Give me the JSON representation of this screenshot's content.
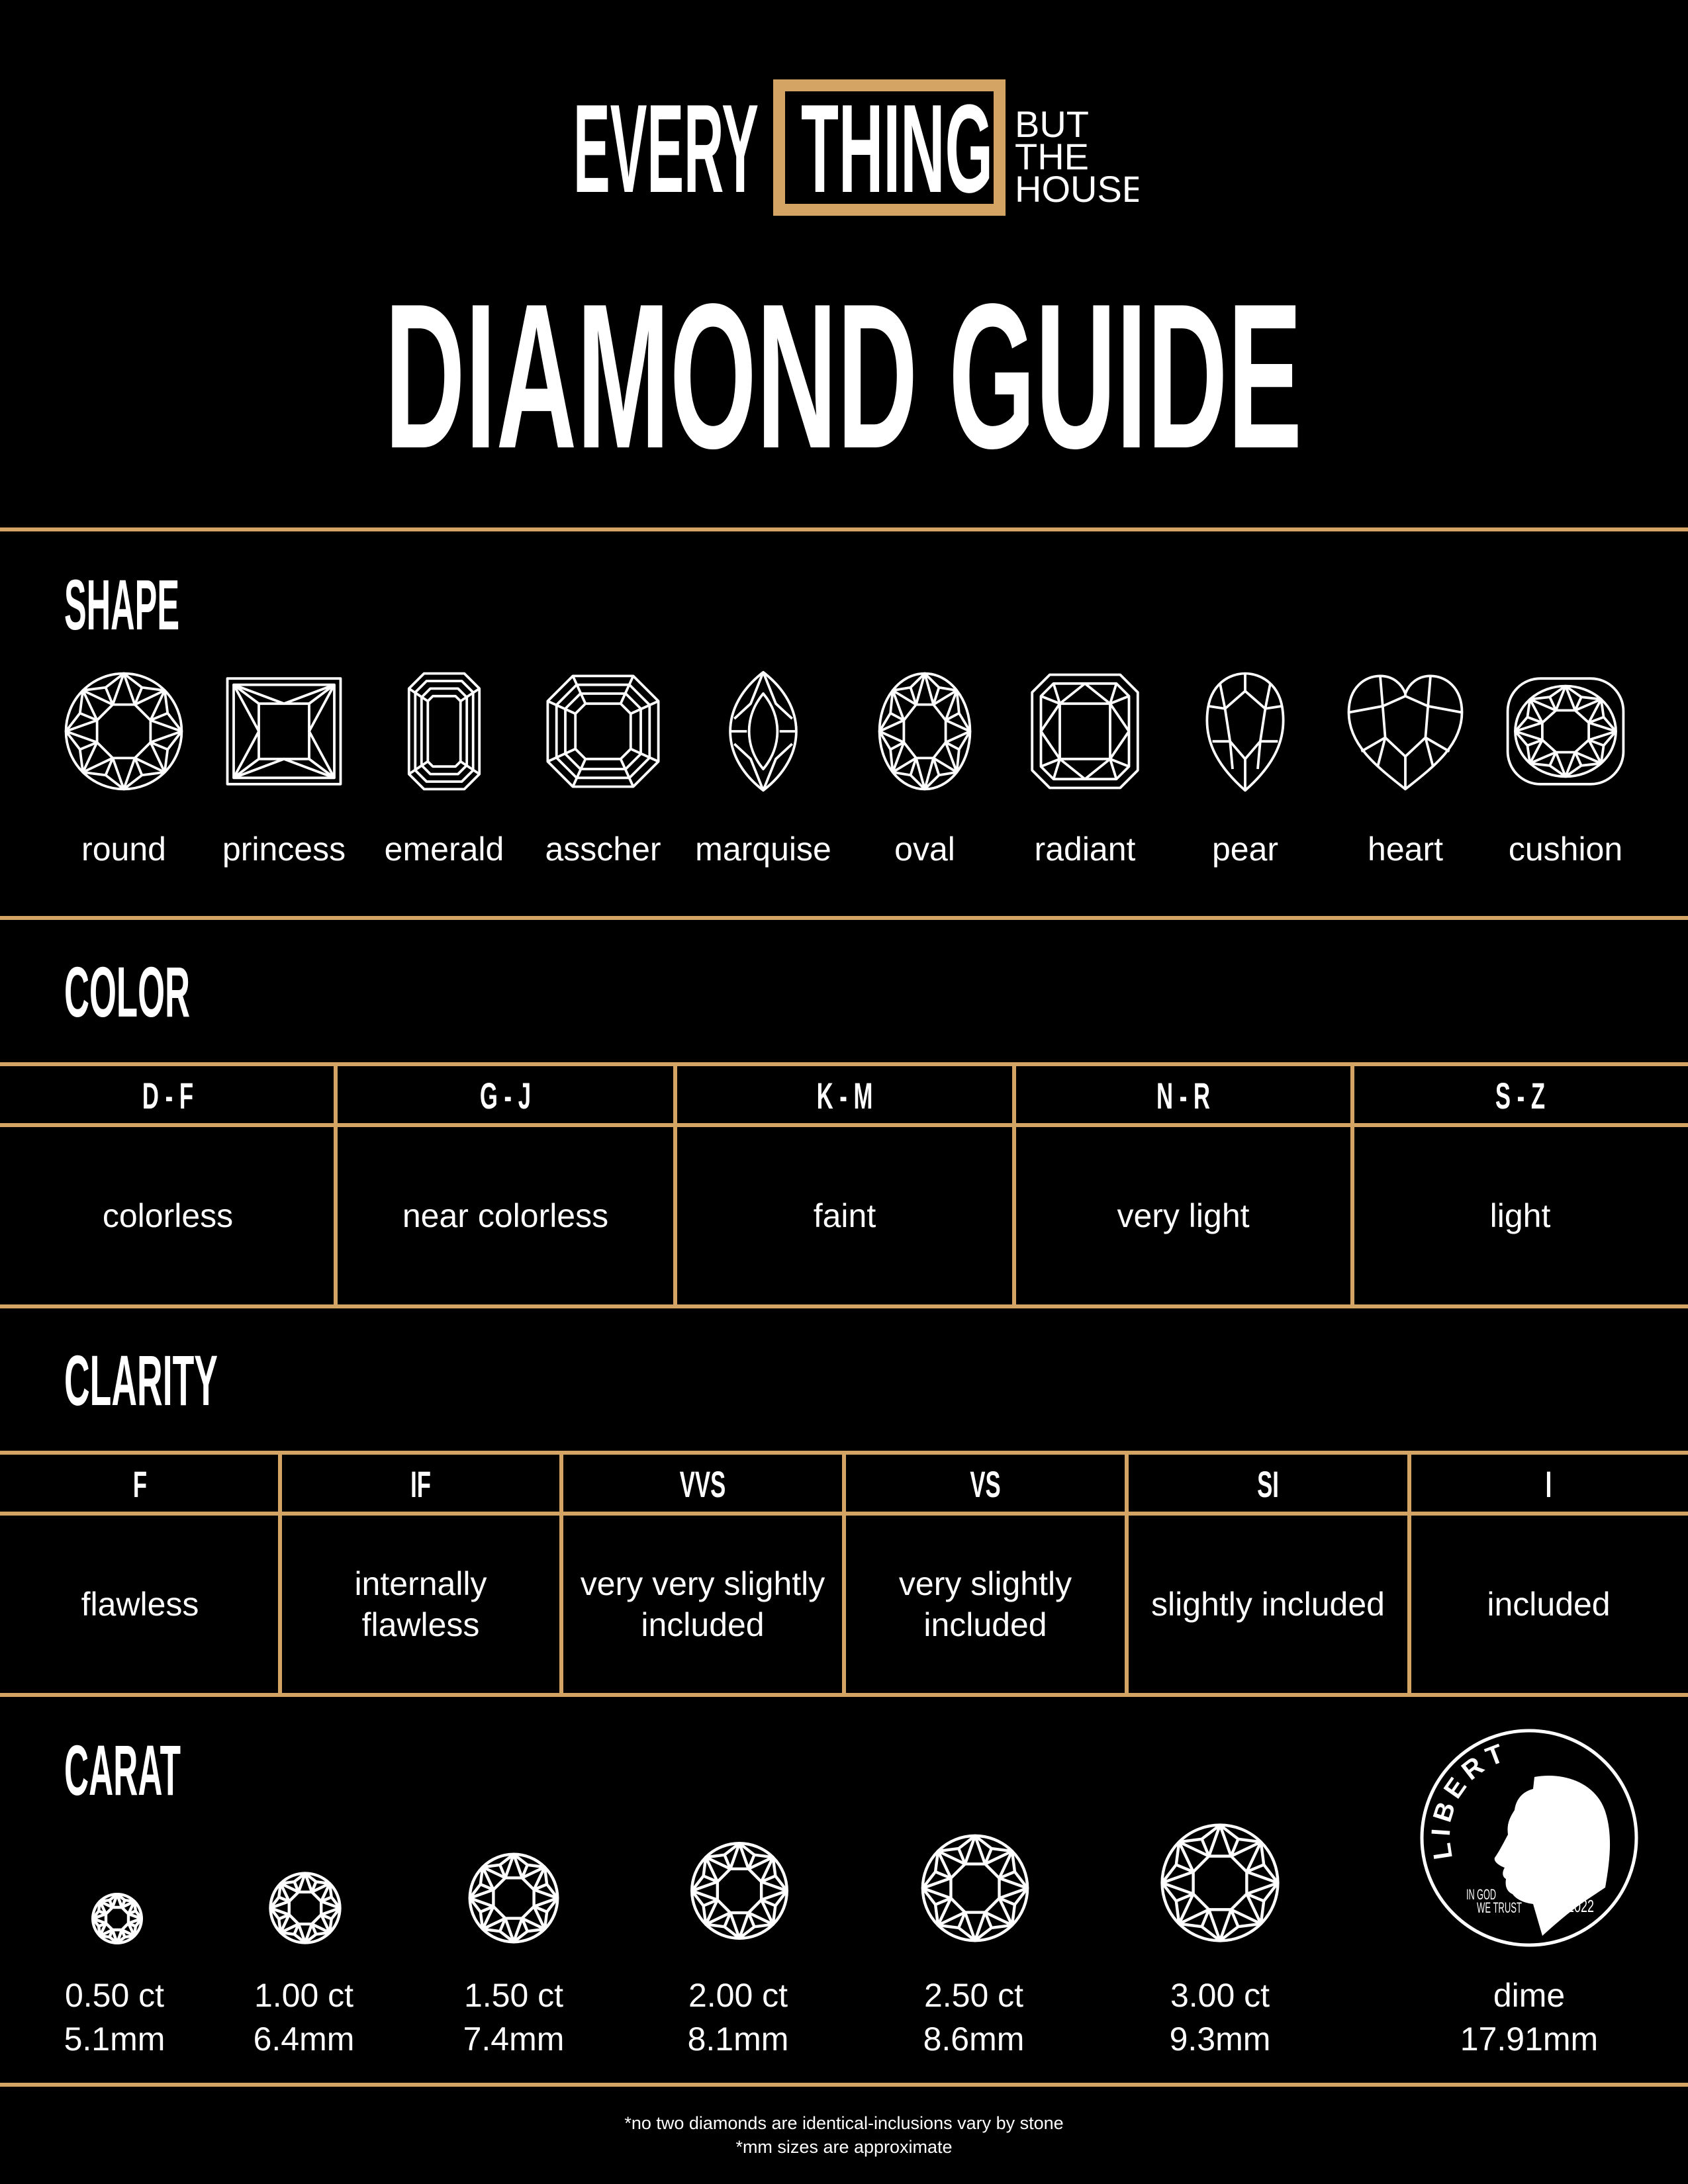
{
  "brand": {
    "word1": "EVERY",
    "word2": "THING",
    "tag1": "BUT",
    "tag2": "THE",
    "tag3": "HOUSE"
  },
  "title": "DIAMOND GUIDE",
  "colors": {
    "background": "#000000",
    "accent": "#D4A464",
    "text": "#FFFFFF"
  },
  "shape": {
    "heading": "SHAPE",
    "items": [
      {
        "label": "round",
        "icon": "round-diamond-icon"
      },
      {
        "label": "princess",
        "icon": "princess-diamond-icon"
      },
      {
        "label": "emerald",
        "icon": "emerald-diamond-icon"
      },
      {
        "label": "asscher",
        "icon": "asscher-diamond-icon"
      },
      {
        "label": "marquise",
        "icon": "marquise-diamond-icon"
      },
      {
        "label": "oval",
        "icon": "oval-diamond-icon"
      },
      {
        "label": "radiant",
        "icon": "radiant-diamond-icon"
      },
      {
        "label": "pear",
        "icon": "pear-diamond-icon"
      },
      {
        "label": "heart",
        "icon": "heart-diamond-icon"
      },
      {
        "label": "cushion",
        "icon": "cushion-diamond-icon"
      }
    ]
  },
  "color": {
    "heading": "COLOR",
    "columns": [
      {
        "grade": "D - F",
        "desc": "colorless"
      },
      {
        "grade": "G - J",
        "desc": "near colorless"
      },
      {
        "grade": "K - M",
        "desc": "faint"
      },
      {
        "grade": "N - R",
        "desc": "very light"
      },
      {
        "grade": "S - Z",
        "desc": "light"
      }
    ]
  },
  "clarity": {
    "heading": "CLARITY",
    "columns": [
      {
        "grade": "F",
        "desc": "flawless"
      },
      {
        "grade": "IF",
        "desc": "internally flawless"
      },
      {
        "grade": "VVS",
        "desc": "very very slightly included"
      },
      {
        "grade": "VS",
        "desc": "very slightly included"
      },
      {
        "grade": "SI",
        "desc": "slightly included"
      },
      {
        "grade": "I",
        "desc": "included"
      }
    ]
  },
  "carat": {
    "heading": "CARAT",
    "items": [
      {
        "weight": "0.50 ct",
        "size": "5.1mm"
      },
      {
        "weight": "1.00 ct",
        "size": "6.4mm"
      },
      {
        "weight": "1.50 ct",
        "size": "7.4mm"
      },
      {
        "weight": "2.00 ct",
        "size": "8.1mm"
      },
      {
        "weight": "2.50 ct",
        "size": "8.6mm"
      },
      {
        "weight": "3.00 ct",
        "size": "9.3mm"
      }
    ],
    "dime": {
      "label": "dime",
      "size": "17.91mm",
      "liberty": "LIBERTY",
      "motto1": "IN GOD",
      "motto2": "WE TRUST",
      "year": "2022"
    }
  },
  "footnotes": [
    "*no two diamonds are identical-inclusions vary by stone",
    "*mm sizes are approximate"
  ]
}
